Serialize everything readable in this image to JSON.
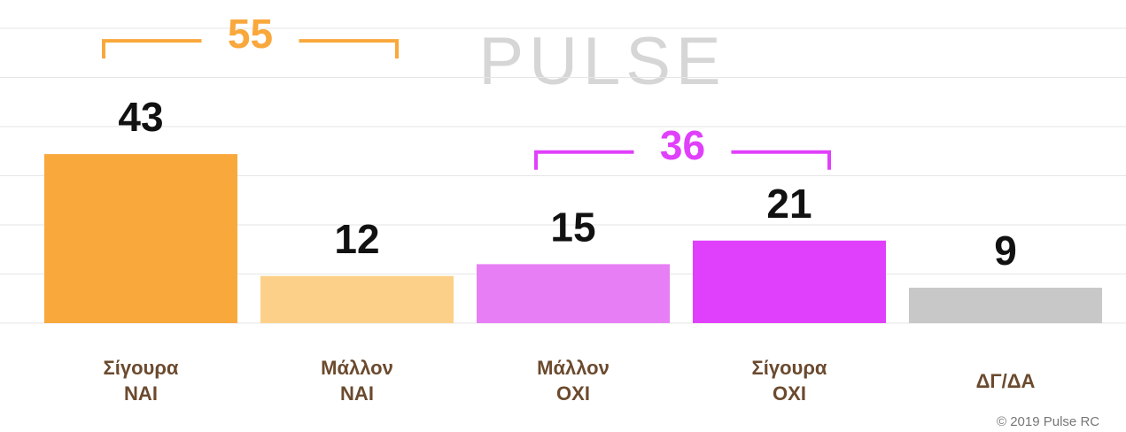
{
  "chart_data": {
    "type": "bar",
    "categories": [
      "Σίγουρα ΝΑΙ",
      "Μάλλον ΝΑΙ",
      "Μάλλον ΟΧΙ",
      "Σίγουρα ΟΧΙ",
      "ΔΓ/ΔΑ"
    ],
    "values": [
      43,
      12,
      15,
      21,
      9
    ],
    "colors": [
      "#f9a83c",
      "#fdd08a",
      "#e87ef5",
      "#e040fb",
      "#c8c8c8"
    ],
    "ylim": [
      0,
      75
    ],
    "yticks": [
      0,
      12.5,
      25,
      37.5,
      50,
      62.5,
      75
    ],
    "grid": true,
    "annotations": [
      {
        "text": "55",
        "color": "#f9a83c"
      },
      {
        "text": "36",
        "color": "#e040fb"
      }
    ],
    "watermark": "PULSE",
    "source": "© 2019 Pulse RC"
  }
}
